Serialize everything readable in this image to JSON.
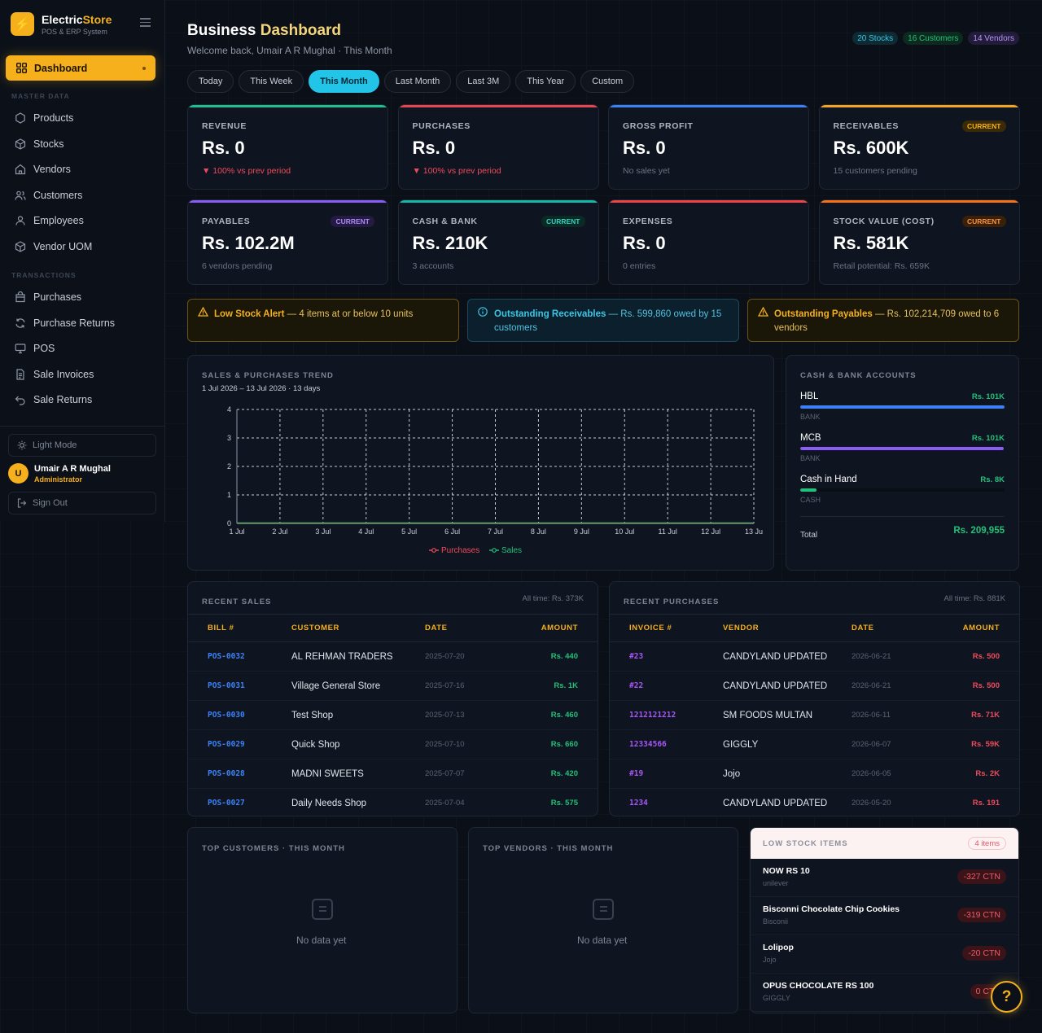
{
  "brand": {
    "name_part1": "Electric",
    "name_part2": "Store",
    "subtitle": "POS & ERP System"
  },
  "sidebar": {
    "active_item": "Dashboard",
    "master_data_label": "MASTER DATA",
    "master_items": [
      {
        "label": "Products",
        "icon": "hexagon-icon"
      },
      {
        "label": "Stocks",
        "icon": "box-icon"
      },
      {
        "label": "Vendors",
        "icon": "store-icon"
      },
      {
        "label": "Customers",
        "icon": "users-icon"
      },
      {
        "label": "Employees",
        "icon": "user-icon"
      },
      {
        "label": "Vendor UOM",
        "icon": "cube-icon"
      }
    ],
    "transactions_label": "TRANSACTIONS",
    "transaction_items": [
      {
        "label": "Purchases",
        "icon": "bag-icon"
      },
      {
        "label": "Purchase Returns",
        "icon": "refresh-icon"
      },
      {
        "label": "POS",
        "icon": "monitor-icon"
      },
      {
        "label": "Sale Invoices",
        "icon": "document-icon"
      },
      {
        "label": "Sale Returns",
        "icon": "undo-icon"
      }
    ],
    "light_mode_label": "Light Mode",
    "user": {
      "initial": "U",
      "name": "Umair A R Mughal",
      "role": "Administrator"
    },
    "sign_out_label": "Sign Out"
  },
  "header": {
    "title_part1": "Business",
    "title_part2": "Dashboard",
    "subtitle": "Welcome back, Umair A R Mughal · This Month",
    "badges": [
      {
        "label": "20 Stocks",
        "color": "#38c7e6",
        "bg": "#0e2a33"
      },
      {
        "label": "16 Customers",
        "color": "#22c07a",
        "bg": "#0d2a1e"
      },
      {
        "label": "14 Vendors",
        "color": "#b197f5",
        "bg": "#221b3a"
      }
    ]
  },
  "tabs": [
    "Today",
    "This Week",
    "This Month",
    "Last Month",
    "Last 3M",
    "This Year",
    "Custom"
  ],
  "active_tab": "This Month",
  "cards": [
    {
      "label": "REVENUE",
      "value": "Rs. 0",
      "sub": "▼ 100% vs prev period",
      "sub_neg": true,
      "pill": "",
      "color": "#1fbf8f"
    },
    {
      "label": "PURCHASES",
      "value": "Rs. 0",
      "sub": "▼ 100% vs prev period",
      "sub_neg": true,
      "pill": "",
      "color": "#e8454f"
    },
    {
      "label": "GROSS PROFIT",
      "value": "Rs. 0",
      "sub": "No sales yet",
      "sub_neg": false,
      "pill": "",
      "color": "#3b82f6"
    },
    {
      "label": "RECEIVABLES",
      "value": "Rs. 600K",
      "sub": "15 customers pending",
      "sub_neg": false,
      "pill": "CURRENT",
      "color": "#f5a524"
    },
    {
      "label": "PAYABLES",
      "value": "Rs. 102.2M",
      "sub": "6 vendors pending",
      "sub_neg": false,
      "pill": "CURRENT",
      "color": "#8b5cf6"
    },
    {
      "label": "CASH & BANK",
      "value": "Rs. 210K",
      "sub": "3 accounts",
      "sub_neg": false,
      "pill": "CURRENT",
      "color": "#14b8a6"
    },
    {
      "label": "EXPENSES",
      "value": "Rs. 0",
      "sub": "0 entries",
      "sub_neg": false,
      "pill": "",
      "color": "#ef4444"
    },
    {
      "label": "STOCK VALUE (COST)",
      "value": "Rs. 581K",
      "sub": "Retail potential: Rs. 659K",
      "sub_neg": false,
      "pill": "CURRENT",
      "color": "#f97316"
    }
  ],
  "alerts": {
    "low_stock": {
      "title": "Low Stock Alert",
      "text": " — 4 items at or below 10 units"
    },
    "receivables": {
      "title": "Outstanding Receivables",
      "text": " — Rs. 599,860 owed by 15 customers"
    },
    "payables": {
      "title": "Outstanding Payables",
      "text": " — Rs. 102,214,709 owed to 6 vendors"
    }
  },
  "trend": {
    "title": "SALES & PURCHASES TREND",
    "subtitle": "1 Jul 2026 – 13 Jul 2026 · 13 days"
  },
  "chart_data": {
    "type": "line",
    "x": [
      "1 Jul",
      "2 Jul",
      "3 Jul",
      "4 Jul",
      "5 Jul",
      "6 Jul",
      "7 Jul",
      "8 Jul",
      "9 Jul",
      "10 Jul",
      "11 Jul",
      "12 Jul",
      "13 Ju"
    ],
    "series": [
      {
        "name": "Purchases",
        "color": "#ef4a5b",
        "values": [
          0,
          0,
          0,
          0,
          0,
          0,
          0,
          0,
          0,
          0,
          0,
          0,
          0
        ]
      },
      {
        "name": "Sales",
        "color": "#22c07a",
        "values": [
          0,
          0,
          0,
          0,
          0,
          0,
          0,
          0,
          0,
          0,
          0,
          0,
          0
        ]
      }
    ],
    "yticks": [
      0,
      1,
      2,
      3,
      4
    ],
    "ylim": [
      0,
      4
    ],
    "grid": true,
    "legend": "bottom"
  },
  "accounts": {
    "title": "CASH & BANK ACCOUNTS",
    "items": [
      {
        "name": "HBL",
        "amount": "Rs. 101K",
        "type": "BANK",
        "fill": 1.0,
        "color": "#3b82f6"
      },
      {
        "name": "MCB",
        "amount": "Rs. 101K",
        "type": "BANK",
        "fill": 0.995,
        "color": "#8b5cf6"
      },
      {
        "name": "Cash in Hand",
        "amount": "Rs. 8K",
        "type": "CASH",
        "fill": 0.08,
        "color": "#22c07a"
      }
    ],
    "total_label": "Total",
    "total_value": "Rs. 209,955"
  },
  "recent_sales": {
    "title": "RECENT SALES",
    "all_time": "All time: Rs. 373K",
    "headers": [
      "BILL #",
      "CUSTOMER",
      "DATE",
      "AMOUNT"
    ],
    "rows": [
      {
        "bill": "POS-0032",
        "customer": "AL REHMAN TRADERS",
        "date": "2025-07-20",
        "amount": "Rs. 440"
      },
      {
        "bill": "POS-0031",
        "customer": "Village General Store",
        "date": "2025-07-16",
        "amount": "Rs. 1K"
      },
      {
        "bill": "POS-0030",
        "customer": "Test Shop",
        "date": "2025-07-13",
        "amount": "Rs. 460"
      },
      {
        "bill": "POS-0029",
        "customer": "Quick Shop",
        "date": "2025-07-10",
        "amount": "Rs. 660"
      },
      {
        "bill": "POS-0028",
        "customer": "MADNI SWEETS",
        "date": "2025-07-07",
        "amount": "Rs. 420"
      },
      {
        "bill": "POS-0027",
        "customer": "Daily Needs Shop",
        "date": "2025-07-04",
        "amount": "Rs. 575"
      }
    ]
  },
  "recent_purchases": {
    "title": "RECENT PURCHASES",
    "all_time": "All time: Rs. 881K",
    "headers": [
      "INVOICE #",
      "VENDOR",
      "DATE",
      "AMOUNT"
    ],
    "rows": [
      {
        "invoice": "#23",
        "vendor": "CANDYLAND UPDATED",
        "date": "2026-06-21",
        "amount": "Rs. 500"
      },
      {
        "invoice": "#22",
        "vendor": "CANDYLAND UPDATED",
        "date": "2026-06-21",
        "amount": "Rs. 500"
      },
      {
        "invoice": "1212121212",
        "vendor": "SM FOODS MULTAN",
        "date": "2026-06-11",
        "amount": "Rs. 71K"
      },
      {
        "invoice": "12334566",
        "vendor": "GIGGLY",
        "date": "2026-06-07",
        "amount": "Rs. 59K"
      },
      {
        "invoice": "#19",
        "vendor": "Jojo",
        "date": "2026-06-05",
        "amount": "Rs. 2K"
      },
      {
        "invoice": "1234",
        "vendor": "CANDYLAND UPDATED",
        "date": "2026-05-20",
        "amount": "Rs. 191"
      }
    ]
  },
  "top_customers": {
    "title": "TOP CUSTOMERS · THIS MONTH",
    "empty": "No data yet"
  },
  "top_vendors": {
    "title": "TOP VENDORS · THIS MONTH",
    "empty": "No data yet"
  },
  "low_stock": {
    "title": "LOW STOCK ITEMS",
    "count": "4 items",
    "items": [
      {
        "name": "NOW RS 10",
        "brand": "unilever",
        "qty": "-327 CTN"
      },
      {
        "name": "Bisconni Chocolate Chip Cookies",
        "brand": "Bisconii",
        "qty": "-319 CTN"
      },
      {
        "name": "Lolipop",
        "brand": "Jojo",
        "qty": "-20 CTN"
      },
      {
        "name": "OPUS CHOCOLATE RS 100",
        "brand": "GIGGLY",
        "qty": "0 CTN"
      }
    ]
  },
  "help_label": "?"
}
